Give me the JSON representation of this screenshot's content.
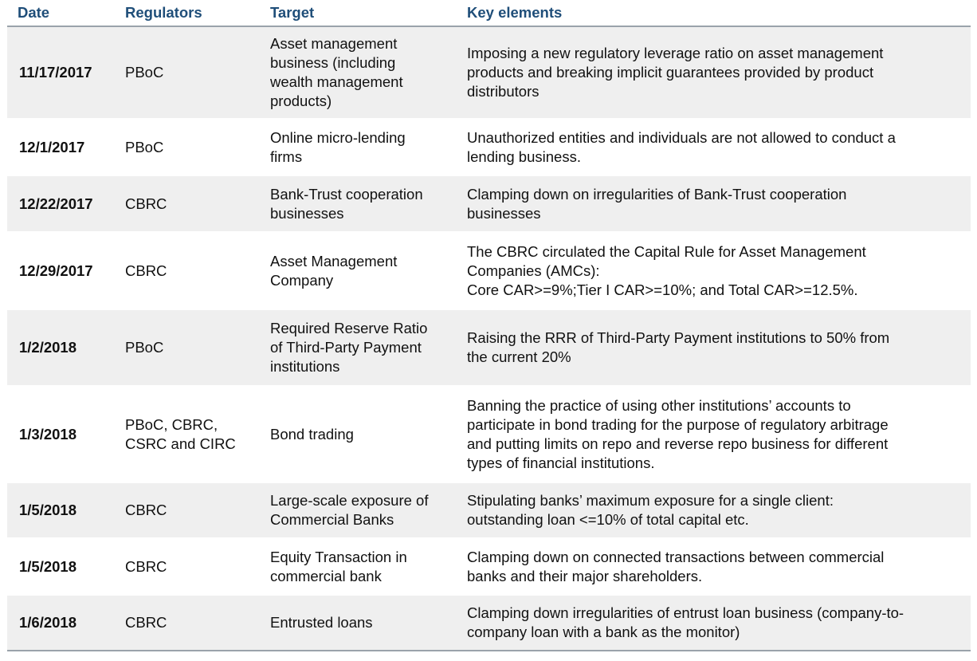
{
  "header": {
    "date": "Date",
    "regulators": "Regulators",
    "target": "Target",
    "key_elements": "Key elements"
  },
  "rows": [
    {
      "date": "11/17/2017",
      "regulators": [
        "PBoC"
      ],
      "target": [
        "Asset management",
        "business (including",
        "wealth management",
        "products)"
      ],
      "key": [
        "Imposing a new regulatory leverage ratio on asset management",
        "products and breaking implicit guarantees provided by product",
        "distributors"
      ]
    },
    {
      "date": "12/1/2017",
      "regulators": [
        "PBoC"
      ],
      "target": [
        "Online micro-lending",
        "firms"
      ],
      "key": [
        "Unauthorized entities and individuals are not allowed to conduct a",
        "lending business."
      ]
    },
    {
      "date": "12/22/2017",
      "regulators": [
        "CBRC"
      ],
      "target": [
        "Bank-Trust cooperation",
        "businesses"
      ],
      "key": [
        "Clamping down on irregularities of Bank-Trust cooperation",
        "businesses"
      ]
    },
    {
      "date": "12/29/2017",
      "regulators": [
        "CBRC"
      ],
      "target": [
        "Asset Management",
        "Company"
      ],
      "key": [
        "The CBRC circulated the Capital Rule for Asset Management",
        "Companies (AMCs):",
        "Core CAR>=9%;Tier I CAR>=10%; and Total CAR>=12.5%."
      ]
    },
    {
      "date": "1/2/2018",
      "regulators": [
        "PBoC"
      ],
      "target": [
        "Required Reserve Ratio",
        "of Third-Party Payment",
        "institutions"
      ],
      "key": [
        "Raising the RRR of Third-Party Payment institutions to 50% from",
        "the current 20%"
      ]
    },
    {
      "date": "1/3/2018",
      "regulators": [
        "PBoC, CBRC,",
        "CSRC and CIRC"
      ],
      "target": [
        "Bond trading"
      ],
      "key": [
        "Banning the practice of using other institutions’ accounts to",
        "participate in bond trading for the purpose of regulatory arbitrage",
        "and putting limits on repo and reverse repo business for different",
        "types of financial institutions."
      ]
    },
    {
      "date": "1/5/2018",
      "regulators": [
        "CBRC"
      ],
      "target": [
        "Large-scale exposure of",
        "Commercial Banks"
      ],
      "key": [
        "Stipulating banks’ maximum exposure for a single client:",
        "outstanding loan <=10% of total capital etc."
      ]
    },
    {
      "date": "1/5/2018",
      "regulators": [
        "CBRC"
      ],
      "target": [
        "Equity Transaction in",
        "commercial bank"
      ],
      "key": [
        "Clamping down on connected transactions between commercial",
        "banks and their major shareholders."
      ]
    },
    {
      "date": "1/6/2018",
      "regulators": [
        "CBRC"
      ],
      "target": [
        "Entrusted loans"
      ],
      "key": [
        "Clamping down irregularities of entrust loan business (company-to-",
        "company loan with a bank as the monitor)"
      ]
    }
  ]
}
